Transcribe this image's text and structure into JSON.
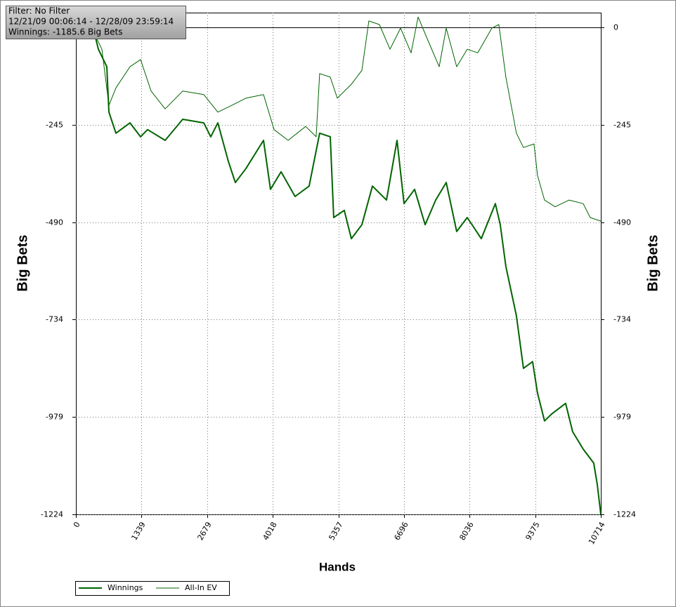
{
  "chart_data": {
    "type": "line",
    "annotations": [
      "Filter: No Filter",
      "12/21/09 00:06:14 - 12/28/09 23:59:14",
      "Winnings: -1185.6 Big Bets"
    ],
    "x_label": "Hands",
    "y_label": "Big Bets",
    "xlim": [
      0,
      10714
    ],
    "xticks": [
      0,
      1339,
      2679,
      4018,
      5357,
      6696,
      8036,
      9375,
      10714
    ],
    "ylim": [
      -1224,
      37
    ],
    "yticks": [
      -1224,
      -979,
      -734,
      -490,
      -245,
      0
    ],
    "grid": true,
    "legend": "bottom-left",
    "series": [
      {
        "name": "Winnings",
        "color": "#006400",
        "x": [
          0,
          387,
          459,
          631,
          674,
          817,
          1104,
          1319,
          1463,
          1821,
          2180,
          2610,
          2753,
          2897,
          3112,
          3255,
          3470,
          3829,
          3972,
          4188,
          4474,
          4761,
          4976,
          5192,
          5263,
          5478,
          5622,
          5837,
          6052,
          6339,
          6554,
          6698,
          6913,
          7128,
          7343,
          7558,
          7773,
          7988,
          8275,
          8561,
          8661,
          8776,
          8991,
          9135,
          9321,
          9422,
          9565,
          9708,
          9995,
          10139,
          10354,
          10569,
          10641,
          10714
        ],
        "values": [
          0,
          -19,
          -55,
          -99,
          -213,
          -266,
          -240,
          -275,
          -257,
          -284,
          -231,
          -240,
          -275,
          -240,
          -337,
          -390,
          -355,
          -284,
          -407,
          -363,
          -425,
          -399,
          -266,
          -275,
          -478,
          -460,
          -531,
          -496,
          -399,
          -434,
          -284,
          -443,
          -407,
          -496,
          -434,
          -390,
          -513,
          -478,
          -531,
          -443,
          -496,
          -601,
          -725,
          -857,
          -840,
          -919,
          -989,
          -972,
          -945,
          -1016,
          -1060,
          -1095,
          -1148,
          -1224
        ]
      },
      {
        "name": "All-In EV",
        "color": "#006400",
        "x": [
          0,
          387,
          531,
          674,
          817,
          1104,
          1319,
          1535,
          1821,
          2180,
          2610,
          2897,
          3184,
          3470,
          3829,
          4045,
          4331,
          4690,
          4904,
          4976,
          5192,
          5335,
          5622,
          5837,
          5980,
          6195,
          6411,
          6626,
          6841,
          6985,
          7200,
          7415,
          7558,
          7773,
          7988,
          8203,
          8490,
          8633,
          8776,
          8991,
          9135,
          9350,
          9422,
          9565,
          9780,
          10067,
          10354,
          10497,
          10714
        ],
        "values": [
          0,
          -19,
          -55,
          -196,
          -152,
          -99,
          -81,
          -160,
          -205,
          -160,
          -169,
          -213,
          -196,
          -178,
          -169,
          -257,
          -284,
          -249,
          -275,
          -116,
          -125,
          -178,
          -143,
          -108,
          16,
          7,
          -55,
          -2,
          -64,
          26,
          -37,
          -99,
          -2,
          -99,
          -55,
          -64,
          -2,
          7,
          -125,
          -266,
          -302,
          -293,
          -372,
          -434,
          -451,
          -434,
          -443,
          -478,
          -487
        ]
      }
    ]
  }
}
